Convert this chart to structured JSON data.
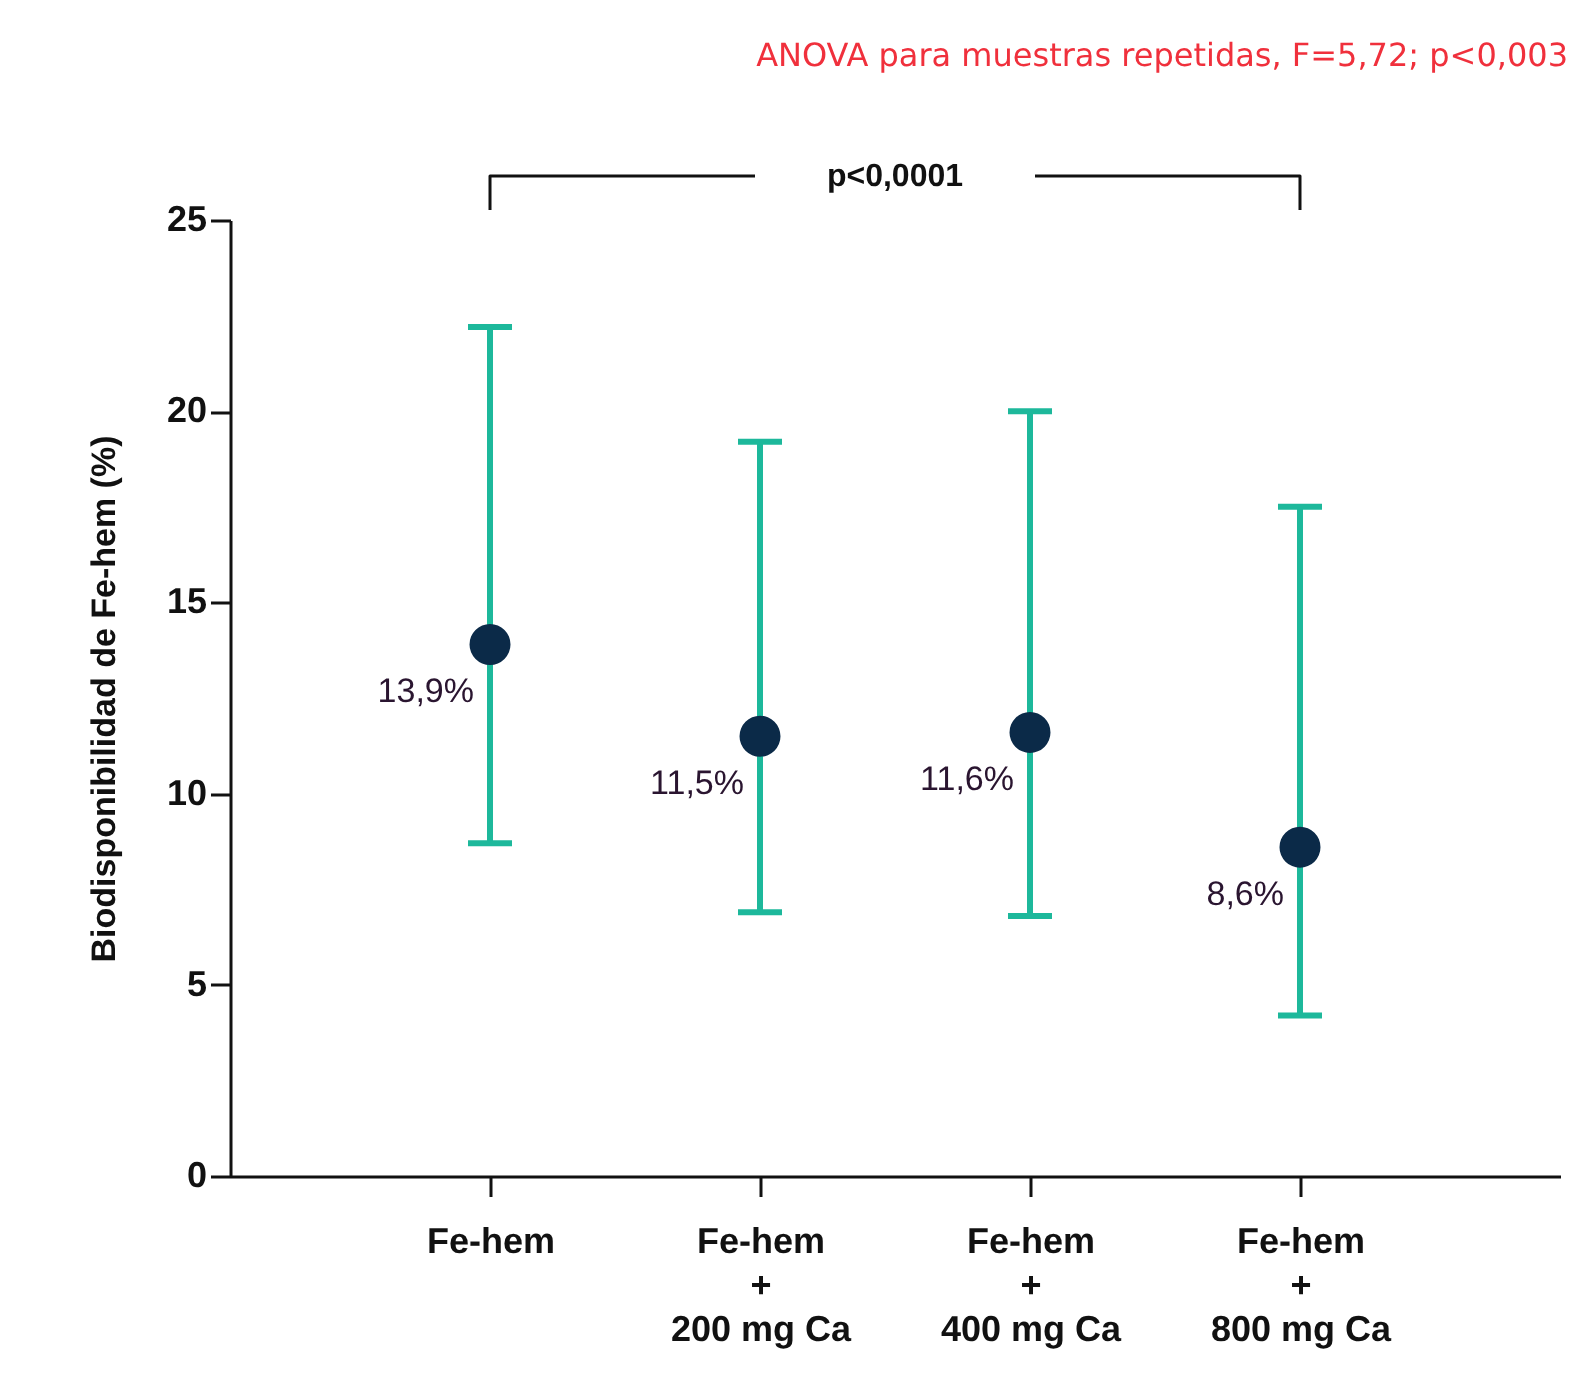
{
  "chart_data": {
    "type": "scatter",
    "ylabel": "Biodisponibilidad de Fe-hem (%)",
    "annotations": [
      "ANOVA para muestras repetidas, F=5,72; p<0,003",
      "p<0,0001"
    ],
    "categories": [
      "Fe-hem",
      "Fe-hem\n+\n200 mg Ca",
      "Fe-hem\n+\n400 mg Ca",
      "Fe-hem\n+\n800 mg Ca"
    ],
    "series": [
      {
        "color": "#0b2a48",
        "values": [
          13.9,
          11.5,
          11.6,
          8.6
        ],
        "errors": [
          [
            8.7,
            22.2
          ],
          [
            6.9,
            19.2
          ],
          [
            6.8,
            20.0
          ],
          [
            4.2,
            17.5
          ]
        ],
        "value_labels": [
          "13,9%",
          "11,5%",
          "11,6%",
          "8,6%"
        ]
      }
    ],
    "ylim": [
      0,
      25
    ],
    "yticks": [
      0,
      5,
      10,
      15,
      20,
      25
    ],
    "marker": "circle"
  }
}
